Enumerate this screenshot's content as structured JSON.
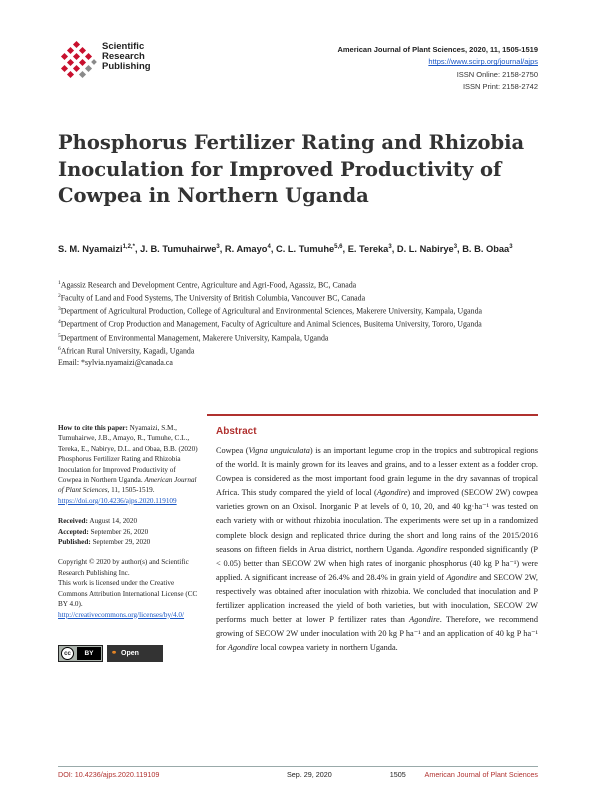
{
  "publisher": {
    "name_lines": [
      "Scientific",
      "Research",
      "Publishing"
    ],
    "brand_color": "#c8102e"
  },
  "journal": {
    "citation": "American Journal of Plant Sciences, 2020, 11, 1505-1519",
    "url": "https://www.scirp.org/journal/ajps",
    "issn_online": "ISSN Online: 2158-2750",
    "issn_print": "ISSN Print: 2158-2742"
  },
  "article": {
    "title": "Phosphorus Fertilizer Rating and Rhizobia Inoculation for Improved Productivity of Cowpea in Northern Uganda"
  },
  "authors": [
    {
      "name": "S. M. Nyamaizi",
      "sup": "1,2,*"
    },
    {
      "name": "J. B. Tumuhairwe",
      "sup": "3"
    },
    {
      "name": "R. Amayo",
      "sup": "4"
    },
    {
      "name": "C. L. Tumuhe",
      "sup": "5,6"
    },
    {
      "name": "E. Tereka",
      "sup": "3"
    },
    {
      "name": "D. L. Nabirye",
      "sup": "3"
    },
    {
      "name": "B. B. Obaa",
      "sup": "3"
    }
  ],
  "affiliations": [
    {
      "sup": "1",
      "text": "Agassiz Research and Development Centre, Agriculture and Agri-Food, Agassiz, BC, Canada"
    },
    {
      "sup": "2",
      "text": "Faculty of Land and Food Systems, The University of British Columbia, Vancouver BC, Canada"
    },
    {
      "sup": "3",
      "text": "Department of Agricultural Production, College of Agricultural and Environmental Sciences, Makerere University, Kampala, Uganda"
    },
    {
      "sup": "4",
      "text": "Department of Crop Production and Management, Faculty of Agriculture and Animal Sciences, Busitema University, Tororo, Uganda"
    },
    {
      "sup": "5",
      "text": "Department of Environmental Management, Makerere University, Kampala, Uganda"
    },
    {
      "sup": "6",
      "text": "African Rural University, Kagadi, Uganda"
    }
  ],
  "email": "Email: *sylvia.nyamaizi@canada.ca",
  "how_to_cite": {
    "label": "How to cite this paper:",
    "text": "Nyamaizi, S.M., Tumuhairwe, J.B., Amayo, R., Tumuhe, C.L., Tereka, E., Nabirye, D.L. and Obaa, B.B. (2020) Phosphorus Fertilizer Rating and Rhizobia Inoculation for Improved Productivity of Cowpea in Northern Uganda.",
    "journal": "American Journal of Plant Sciences",
    "volume_pages": ", 11, 1505-1519.",
    "doi": "https://doi.org/10.4236/ajps.2020.119109"
  },
  "dates": [
    {
      "label": "Received:",
      "value": "August 14, 2020"
    },
    {
      "label": "Accepted:",
      "value": "September 26, 2020"
    },
    {
      "label": "Published:",
      "value": "September 29, 2020"
    }
  ],
  "copyright": {
    "line1": "Copyright © 2020 by author(s) and Scientific Research Publishing Inc.",
    "line2": "This work is licensed under the Creative Commons Attribution International License (CC BY 4.0).",
    "license_url": "http://creativecommons.org/licenses/by/4.0/"
  },
  "badges": {
    "cc_text": "cc",
    "by_text": "BY",
    "open_access": "Open Access"
  },
  "abstract": {
    "heading": "Abstract",
    "segments": [
      {
        "t": "Cowpea (",
        "i": false
      },
      {
        "t": "Vigna unguiculata",
        "i": true
      },
      {
        "t": ") is an important legume crop in the tropics and subtropical regions of the world. It is mainly grown for its leaves and grains, and to a lesser extent as a fodder crop. Cowpea is considered as the most important food grain legume in the dry savannas of tropical Africa. This study compared the yield of local (",
        "i": false
      },
      {
        "t": "Agondire",
        "i": true
      },
      {
        "t": ") and improved (SECOW 2W) cowpea varieties grown on an Oxisol. Inorganic P at levels of 0, 10, 20, and 40 kg·ha⁻¹ was tested on each variety with or without rhizobia inoculation. The experiments were set up in a randomized complete block design and replicated thrice during the short and long rains of the 2015/2016 seasons on fifteen fields in Arua district, northern Uganda. ",
        "i": false
      },
      {
        "t": "Agondire",
        "i": true
      },
      {
        "t": " responded significantly (P < 0.05) better than SECOW 2W when high rates of inorganic phosphorus (40 kg P ha⁻¹) were applied. A significant increase of 26.4% and 28.4% in grain yield of ",
        "i": false
      },
      {
        "t": "Agondire",
        "i": true
      },
      {
        "t": " and SECOW 2W, respectively was obtained after inoculation with rhizobia. We concluded that inoculation and P fertilizer application increased the yield of both varieties, but with inoculation, SECOW 2W performs much better at lower P fertilizer rates than ",
        "i": false
      },
      {
        "t": "Agondire",
        "i": true
      },
      {
        "t": ". Therefore, we recommend growing of SECOW 2W under inoculation with 20 kg P ha⁻¹ and an application of 40 kg P ha⁻¹ for ",
        "i": false
      },
      {
        "t": "Agondire",
        "i": true
      },
      {
        "t": " local cowpea variety in northern Uganda.",
        "i": false
      }
    ]
  },
  "footer": {
    "doi": "DOI: 10.4236/ajps.2020.119109",
    "date": "Sep. 29, 2020",
    "page": "1505",
    "journal": "American Journal of Plant Sciences"
  }
}
